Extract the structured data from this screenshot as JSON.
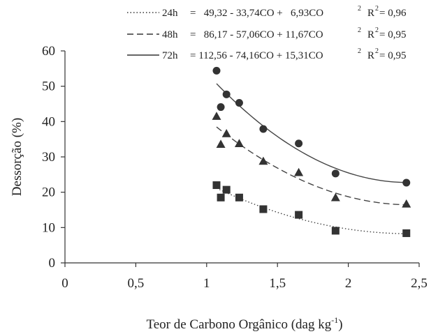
{
  "chart_data": {
    "type": "scatter",
    "xlabel": "Teor de Carbono Orgânico (dag kg",
    "xlabel_sup": "-1",
    "xlabel_close": ")",
    "ylabel": "Dessorção (%)",
    "xlim": [
      0,
      2.5
    ],
    "ylim": [
      0,
      60
    ],
    "xticks": [
      "0",
      "0,5",
      "1",
      "1,5",
      "2",
      "2,5"
    ],
    "yticks": [
      "0",
      "10",
      "20",
      "30",
      "40",
      "50",
      "60"
    ],
    "grid": false,
    "legend_position": "top-right",
    "series": [
      {
        "name": "24h",
        "marker": "square",
        "line_style": "dotted",
        "equation": "=   49,32 - 33,74CO +   6,93CO",
        "r2": "= 0,96",
        "coef": [
          49.32,
          -33.74,
          6.93
        ],
        "x": [
          1.07,
          1.1,
          1.14,
          1.23,
          1.4,
          1.65,
          1.91,
          2.41
        ],
        "y": [
          22.0,
          18.5,
          20.7,
          18.5,
          15.2,
          13.6,
          9.1,
          8.4
        ]
      },
      {
        "name": "48h",
        "marker": "triangle",
        "line_style": "dashed",
        "equation": "=   86,17 - 57,06CO + 11,67CO",
        "r2": "= 0,95",
        "coef": [
          86.17,
          -57.06,
          11.67
        ],
        "x": [
          1.07,
          1.1,
          1.14,
          1.23,
          1.4,
          1.65,
          1.91,
          2.41
        ],
        "y": [
          41.5,
          33.6,
          36.6,
          33.8,
          28.8,
          25.6,
          18.5,
          16.7
        ]
      },
      {
        "name": "72h",
        "marker": "circle",
        "line_style": "solid",
        "equation": "= 112,56 - 74,16CO + 15,31CO",
        "r2": "= 0,95",
        "coef": [
          112.56,
          -74.16,
          15.31
        ],
        "x": [
          1.07,
          1.1,
          1.14,
          1.23,
          1.4,
          1.65,
          1.91,
          2.41
        ],
        "y": [
          54.4,
          44.1,
          47.7,
          45.3,
          37.9,
          33.8,
          25.3,
          22.7
        ]
      }
    ]
  },
  "legend": {
    "squared": "2",
    "r_prefix": "R"
  }
}
